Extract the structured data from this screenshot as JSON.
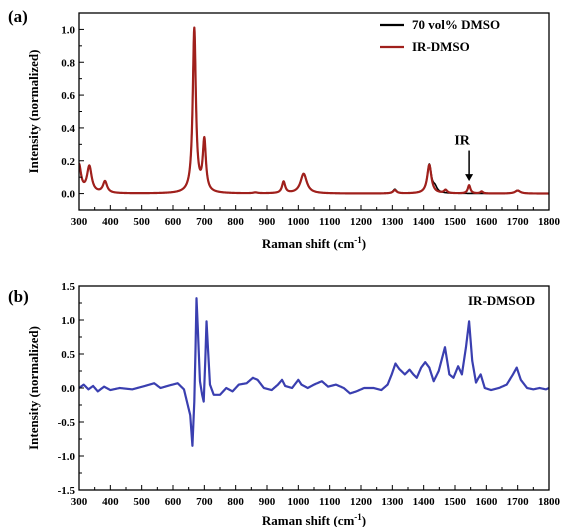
{
  "chart_data": [
    {
      "panel_label": "(a)",
      "type": "line",
      "xlabel": "Raman shift (cm",
      "xlabel_sup": "-1",
      "xlabel_close": ")",
      "ylabel": "Intensity (normalized)",
      "xlim": [
        300,
        1800
      ],
      "ylim": [
        -0.1,
        1.1
      ],
      "xticks": [
        300,
        400,
        500,
        600,
        700,
        800,
        900,
        1000,
        1100,
        1200,
        1300,
        1400,
        1500,
        1600,
        1700,
        1800
      ],
      "yticks": [
        0.0,
        0.2,
        0.4,
        0.6,
        0.8,
        1.0
      ],
      "ytick_labels": [
        "0.0",
        "0.2",
        "0.4",
        "0.6",
        "0.8",
        "1.0"
      ],
      "legend_position": "top-right",
      "annotation": {
        "text": "IR",
        "x": 1545,
        "y_from": 0.25,
        "y_to": 0.07
      },
      "series": [
        {
          "name": "70 vol% DMSO",
          "color": "#000000",
          "baseline": 0.0,
          "peaks": [
            [
              300,
              0.17,
              8
            ],
            [
              333,
              0.16,
              9
            ],
            [
              383,
              0.07,
              8
            ],
            [
              668,
              1.0,
              6
            ],
            [
              700,
              0.31,
              6
            ],
            [
              863,
              0.005,
              8
            ],
            [
              953,
              0.07,
              6
            ],
            [
              1017,
              0.12,
              12
            ],
            [
              1308,
              0.025,
              7
            ],
            [
              1418,
              0.175,
              8
            ],
            [
              1436,
              0.03,
              8
            ],
            [
              1700,
              0.02,
              10
            ]
          ]
        },
        {
          "name": "IR-DMSO",
          "color": "#a0201c",
          "baseline": 0.0,
          "peaks": [
            [
              300,
              0.17,
              8
            ],
            [
              333,
              0.16,
              9
            ],
            [
              383,
              0.07,
              8
            ],
            [
              668,
              1.0,
              6
            ],
            [
              700,
              0.31,
              6
            ],
            [
              863,
              0.005,
              8
            ],
            [
              953,
              0.07,
              6
            ],
            [
              1017,
              0.12,
              12
            ],
            [
              1308,
              0.02,
              7
            ],
            [
              1418,
              0.175,
              8
            ],
            [
              1470,
              0.02,
              6
            ],
            [
              1545,
              0.05,
              5
            ],
            [
              1585,
              0.012,
              5
            ],
            [
              1700,
              0.018,
              10
            ]
          ]
        }
      ]
    },
    {
      "panel_label": "(b)",
      "type": "line",
      "xlabel": "Raman shift (cm",
      "xlabel_sup": "-1",
      "xlabel_close": ")",
      "ylabel": "Intensity (normalized)",
      "xlim": [
        300,
        1800
      ],
      "ylim": [
        -1.5,
        1.5
      ],
      "xticks": [
        300,
        400,
        500,
        600,
        700,
        800,
        900,
        1000,
        1100,
        1200,
        1300,
        1400,
        1500,
        1600,
        1700,
        1800
      ],
      "yticks": [
        -1.5,
        -1.0,
        -0.5,
        0.0,
        0.5,
        1.0,
        1.5
      ],
      "ytick_labels": [
        "-1.5",
        "-1.0",
        "-0.5",
        "0.0",
        "0.5",
        "1.0",
        "1.5"
      ],
      "legend_position": "top-right",
      "series": [
        {
          "name": "IR-DMSOD",
          "color": "#3a3fb0",
          "baseline": 0.0,
          "points": [
            [
              300,
              0.0
            ],
            [
              315,
              0.05
            ],
            [
              330,
              -0.02
            ],
            [
              345,
              0.03
            ],
            [
              360,
              -0.05
            ],
            [
              380,
              0.02
            ],
            [
              400,
              -0.03
            ],
            [
              430,
              0.0
            ],
            [
              470,
              -0.02
            ],
            [
              510,
              0.03
            ],
            [
              540,
              0.07
            ],
            [
              560,
              0.0
            ],
            [
              590,
              0.04
            ],
            [
              615,
              0.07
            ],
            [
              635,
              -0.02
            ],
            [
              655,
              -0.4
            ],
            [
              662,
              -0.85
            ],
            [
              668,
              -0.2
            ],
            [
              672,
              0.6
            ],
            [
              675,
              1.32
            ],
            [
              679,
              0.9
            ],
            [
              686,
              0.1
            ],
            [
              693,
              -0.1
            ],
            [
              698,
              -0.2
            ],
            [
              703,
              0.4
            ],
            [
              707,
              0.98
            ],
            [
              712,
              0.55
            ],
            [
              718,
              0.05
            ],
            [
              730,
              -0.1
            ],
            [
              750,
              -0.1
            ],
            [
              770,
              0.0
            ],
            [
              790,
              -0.05
            ],
            [
              810,
              0.05
            ],
            [
              835,
              0.07
            ],
            [
              855,
              0.15
            ],
            [
              870,
              0.12
            ],
            [
              890,
              0.0
            ],
            [
              915,
              -0.03
            ],
            [
              935,
              0.05
            ],
            [
              948,
              0.12
            ],
            [
              958,
              0.03
            ],
            [
              980,
              0.0
            ],
            [
              1000,
              0.12
            ],
            [
              1010,
              0.05
            ],
            [
              1030,
              0.0
            ],
            [
              1050,
              0.05
            ],
            [
              1075,
              0.1
            ],
            [
              1095,
              0.02
            ],
            [
              1120,
              0.05
            ],
            [
              1145,
              0.0
            ],
            [
              1165,
              -0.08
            ],
            [
              1185,
              -0.05
            ],
            [
              1210,
              0.0
            ],
            [
              1240,
              0.0
            ],
            [
              1265,
              -0.03
            ],
            [
              1285,
              0.05
            ],
            [
              1298,
              0.2
            ],
            [
              1310,
              0.36
            ],
            [
              1322,
              0.28
            ],
            [
              1340,
              0.2
            ],
            [
              1355,
              0.27
            ],
            [
              1367,
              0.2
            ],
            [
              1378,
              0.15
            ],
            [
              1392,
              0.3
            ],
            [
              1405,
              0.38
            ],
            [
              1418,
              0.3
            ],
            [
              1432,
              0.1
            ],
            [
              1448,
              0.25
            ],
            [
              1468,
              0.6
            ],
            [
              1482,
              0.2
            ],
            [
              1495,
              0.15
            ],
            [
              1510,
              0.32
            ],
            [
              1522,
              0.2
            ],
            [
              1535,
              0.6
            ],
            [
              1545,
              0.98
            ],
            [
              1555,
              0.4
            ],
            [
              1567,
              0.08
            ],
            [
              1575,
              0.15
            ],
            [
              1582,
              0.2
            ],
            [
              1595,
              0.0
            ],
            [
              1615,
              -0.03
            ],
            [
              1640,
              0.0
            ],
            [
              1665,
              0.05
            ],
            [
              1685,
              0.2
            ],
            [
              1697,
              0.3
            ],
            [
              1710,
              0.12
            ],
            [
              1730,
              0.0
            ],
            [
              1750,
              -0.02
            ],
            [
              1770,
              0.0
            ],
            [
              1790,
              -0.02
            ],
            [
              1800,
              0.0
            ]
          ]
        }
      ]
    }
  ]
}
